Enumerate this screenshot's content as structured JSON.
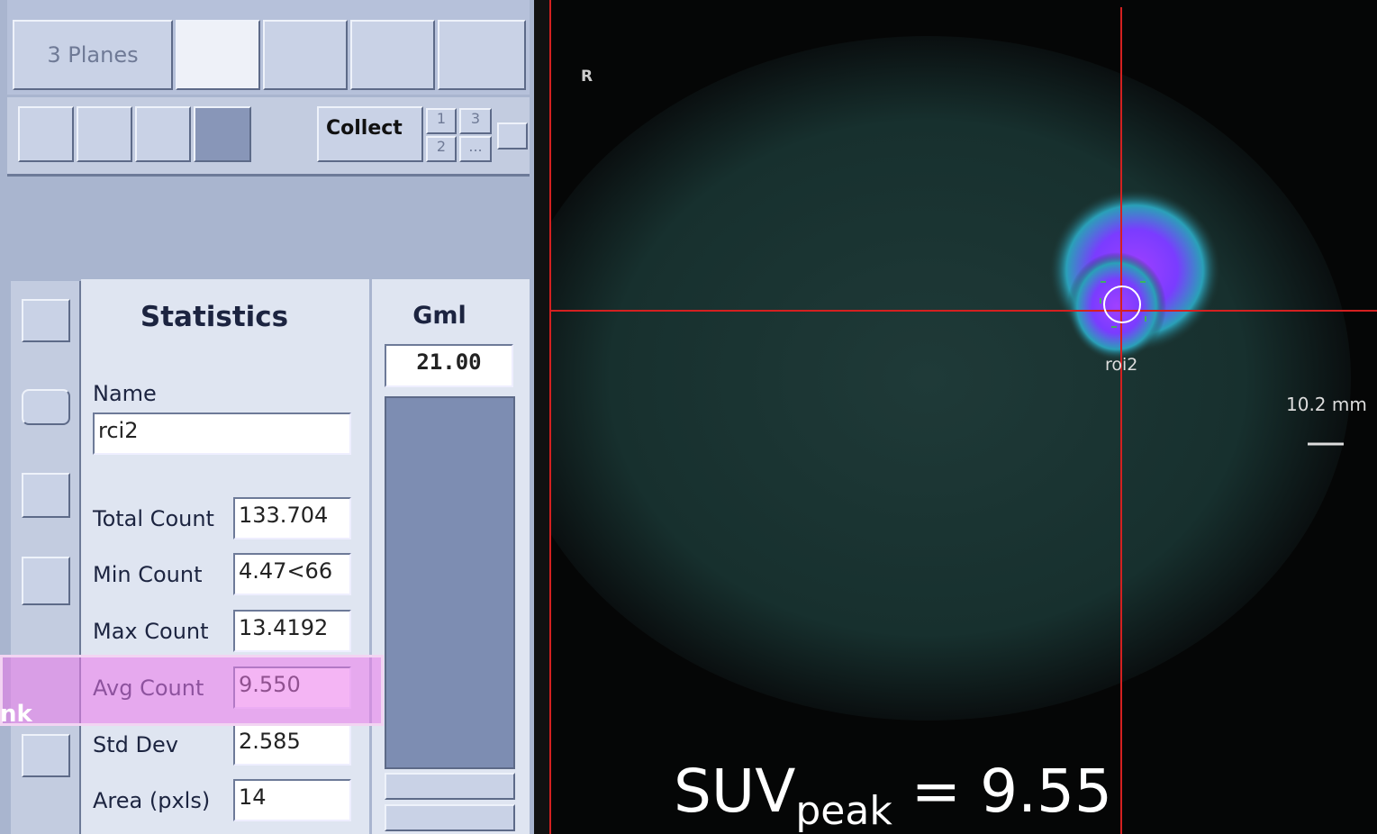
{
  "toolbar": {
    "layout_button": "3 Planes",
    "collect_button": "Collect",
    "collect_slots": [
      "1",
      "3",
      "2",
      "..."
    ]
  },
  "statistics": {
    "title": "Statistics",
    "name_label": "Name",
    "name_value": "rci2",
    "rows": [
      {
        "label": "Total Count",
        "value": "133.704"
      },
      {
        "label": "Min Count",
        "value": "4.47<66"
      },
      {
        "label": "Max Count",
        "value": "13.4192"
      },
      {
        "label": "Avg Count",
        "value": "9.550"
      },
      {
        "label": "Std Dev",
        "value": "2.585"
      },
      {
        "label": "Area (pxls)",
        "value": "14"
      }
    ]
  },
  "gml": {
    "title": "Gml",
    "value": "21.00"
  },
  "highlight_label": "nk",
  "viewer": {
    "orientation": "R",
    "roi_label": "roi2",
    "scale_label": "10.2 mm",
    "annotation": {
      "main": "SUV",
      "subscript": "peak",
      "suffix": "= 9.55"
    }
  }
}
